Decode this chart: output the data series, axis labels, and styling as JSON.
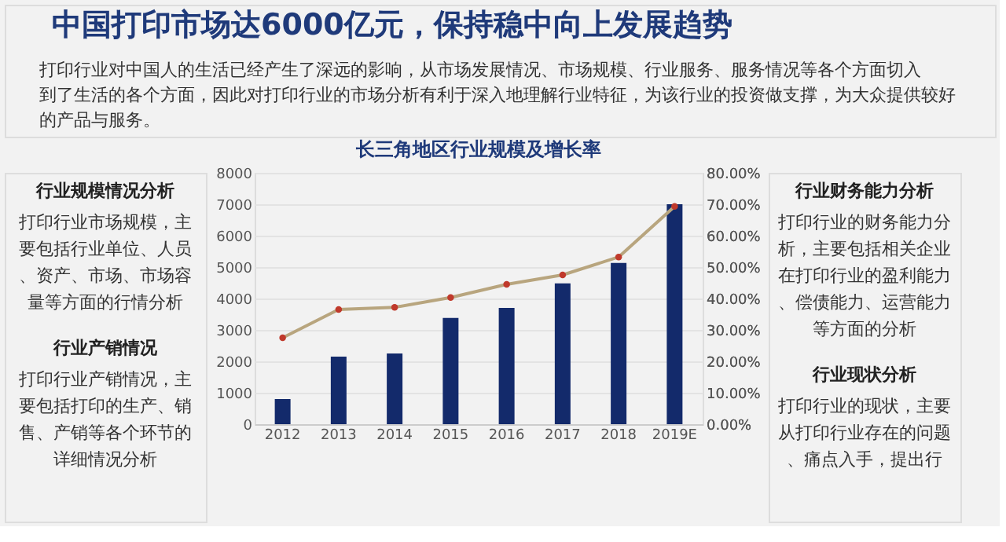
{
  "chart_data": {
    "type": "bar",
    "title": "长三角地区行业规模及增长率",
    "categories": [
      "2012",
      "2013",
      "2014",
      "2015",
      "2016",
      "2017",
      "2018",
      "2019E"
    ],
    "series": [
      {
        "color": "#132a6b",
        "values": [
          800,
          2150,
          2250,
          3380,
          3700,
          4480,
          5130,
          7000
        ]
      },
      {
        "type": "line",
        "axis": "y2",
        "color": "#b8a57e",
        "marker": "circle",
        "values": [
          27.5,
          36.5,
          37.2,
          40.3,
          44.5,
          47.5,
          53.2,
          69.3
        ]
      }
    ],
    "ylim": [
      0,
      8000
    ],
    "yticks": [
      0,
      1000,
      2000,
      3000,
      4000,
      5000,
      6000,
      7000,
      8000
    ],
    "y2lim": [
      0,
      80
    ],
    "y2ticks": [
      {
        "value": 0,
        "label": "0.00%"
      },
      {
        "value": 10,
        "label": "10.00%"
      },
      {
        "value": 20,
        "label": "20.00%"
      },
      {
        "value": 30,
        "label": "30.00%"
      },
      {
        "value": 40,
        "label": "40.00%"
      },
      {
        "value": 50,
        "label": "50.00%"
      },
      {
        "value": 60,
        "label": "60.00%"
      },
      {
        "value": 70,
        "label": "70.00%"
      },
      {
        "value": 80,
        "label": "80.00%"
      }
    ],
    "grid": "y",
    "legend": false,
    "annotations": [
      "中国打印市场达6000亿元，保持稳中向上发展趋势",
      "　　打印行业对中国人的生活已经产生了深远的影响，从市场发展情况、市场规模、行业服务、服务情况等各个方面切入到了生活的各个方面，因此对打印行业的市场分析有利于深入地理解行业特征，为该行业的投资做支撑，为大众提供较好的产品与服务。",
      "行业规模情况分析",
      "打印行业市场规模，主要包括行业单位、人员、资产、市场、市场容量等方面的行情分析",
      "行业产销情况",
      "打印行业产销情况，主要包括打印的生产、销售、产销等各个环节的详细情况分析",
      "行业财务能力分析",
      "打印行业的财务能力分析，主要包括相关企业在打印行业的盈利能力、偿债能力、运营能力等方面的分析",
      "行业现状分析",
      "打印行业的现状，主要从打印行业存在的问题、痛点入手，提出行"
    ]
  }
}
